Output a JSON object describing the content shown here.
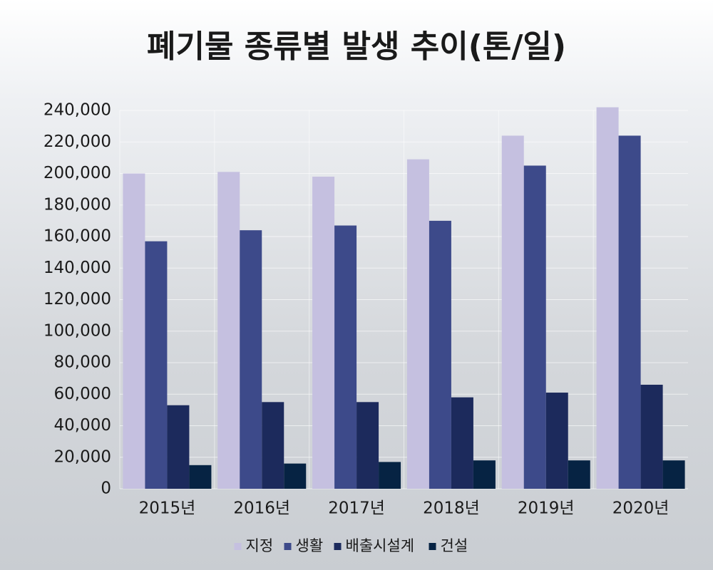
{
  "chart_data": {
    "type": "bar",
    "title": "폐기물 종류별 발생 추이(톤/일)",
    "categories": [
      "2015년",
      "2016년",
      "2017년",
      "2018년",
      "2019년",
      "2020년"
    ],
    "series": [
      {
        "name": "지정",
        "color": "#c5c0e0",
        "values": [
          200000,
          201000,
          198000,
          209000,
          224000,
          242000
        ]
      },
      {
        "name": "생활",
        "color": "#3d4a8a",
        "values": [
          157000,
          164000,
          167000,
          170000,
          205000,
          224000
        ]
      },
      {
        "name": "배출시설계",
        "color": "#1c2a5c",
        "values": [
          53000,
          55000,
          55000,
          58000,
          61000,
          66000
        ]
      },
      {
        "name": "건설",
        "color": "#062343",
        "values": [
          15000,
          16000,
          17000,
          18000,
          18000,
          18000
        ]
      }
    ],
    "ylim": [
      0,
      240000
    ],
    "yticks": [
      0,
      {
        "value": 20000,
        "label": "20,000"
      },
      {
        "value": 40000,
        "label": "40,000"
      },
      {
        "value": 60000,
        "label": "60,000"
      },
      {
        "value": 80000,
        "label": "80,000"
      },
      {
        "value": 100000,
        "label": "100,000"
      },
      {
        "value": 120000,
        "label": "120,000"
      },
      {
        "value": 140000,
        "label": "140,000"
      },
      {
        "value": 160000,
        "label": "160,000"
      },
      {
        "value": 180000,
        "label": "180,000"
      },
      {
        "value": 200000,
        "label": "200,000"
      },
      {
        "value": 220000,
        "label": "220,000"
      },
      {
        "value": 240000,
        "label": "240,000"
      }
    ],
    "grid": true,
    "legend": "bottom"
  }
}
